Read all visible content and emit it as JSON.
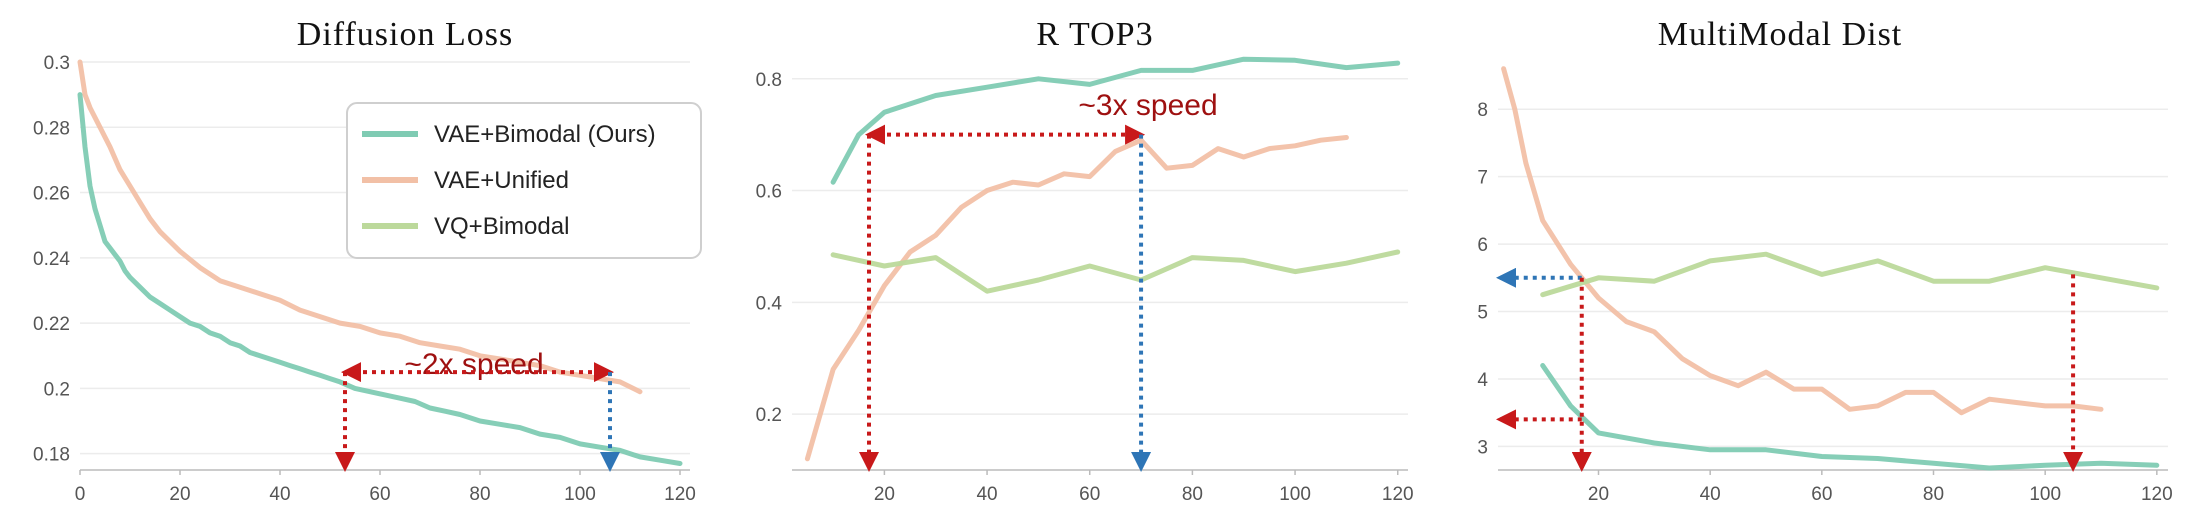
{
  "colors": {
    "vae_bimodal": "#7fcbb3",
    "vae_unified": "#f2c0a6",
    "vq_bimodal": "#bcd99b",
    "annotation_red": "#c8191a",
    "annotation_blue": "#2e75b6",
    "annotation_text": "#9e1010",
    "grid": "#ececec",
    "axis": "#bbbbbb"
  },
  "chart_data": [
    {
      "type": "line",
      "title": "Diffusion Loss",
      "xlabel": "",
      "ylabel": "",
      "xlim": [
        0,
        122
      ],
      "ylim": [
        0.175,
        0.3
      ],
      "xticks": [
        0,
        20,
        40,
        60,
        80,
        100,
        120
      ],
      "yticks": [
        0.18,
        0.2,
        0.22,
        0.24,
        0.26,
        0.28,
        0.3
      ],
      "ytick_labels": [
        "0.18",
        "0.2",
        "0.22",
        "0.24",
        "0.26",
        "0.28",
        "0.3"
      ],
      "legend": {
        "placement": "top-right",
        "entries": [
          "VAE+Bimodal (Ours)",
          "VAE+Unified",
          "VQ+Bimodal"
        ]
      },
      "series": [
        {
          "name": "VAE+Bimodal (Ours)",
          "color": "#7fcbb3",
          "points": [
            [
              0,
              0.29
            ],
            [
              1,
              0.274
            ],
            [
              2,
              0.262
            ],
            [
              3,
              0.255
            ],
            [
              4,
              0.25
            ],
            [
              5,
              0.245
            ],
            [
              6,
              0.243
            ],
            [
              7,
              0.241
            ],
            [
              8,
              0.239
            ],
            [
              9,
              0.236
            ],
            [
              10,
              0.234
            ],
            [
              12,
              0.231
            ],
            [
              14,
              0.228
            ],
            [
              16,
              0.226
            ],
            [
              18,
              0.224
            ],
            [
              20,
              0.222
            ],
            [
              22,
              0.22
            ],
            [
              24,
              0.219
            ],
            [
              26,
              0.217
            ],
            [
              28,
              0.216
            ],
            [
              30,
              0.214
            ],
            [
              32,
              0.213
            ],
            [
              34,
              0.211
            ],
            [
              36,
              0.21
            ],
            [
              38,
              0.209
            ],
            [
              40,
              0.208
            ],
            [
              42,
              0.207
            ],
            [
              44,
              0.206
            ],
            [
              46,
              0.205
            ],
            [
              48,
              0.204
            ],
            [
              50,
              0.203
            ],
            [
              52,
              0.202
            ],
            [
              55,
              0.2
            ],
            [
              58,
              0.199
            ],
            [
              61,
              0.198
            ],
            [
              64,
              0.197
            ],
            [
              67,
              0.196
            ],
            [
              70,
              0.194
            ],
            [
              73,
              0.193
            ],
            [
              76,
              0.192
            ],
            [
              80,
              0.19
            ],
            [
              84,
              0.189
            ],
            [
              88,
              0.188
            ],
            [
              92,
              0.186
            ],
            [
              96,
              0.185
            ],
            [
              100,
              0.183
            ],
            [
              104,
              0.182
            ],
            [
              108,
              0.181
            ],
            [
              112,
              0.179
            ],
            [
              116,
              0.178
            ],
            [
              120,
              0.177
            ]
          ]
        },
        {
          "name": "VAE+Unified",
          "color": "#f2c0a6",
          "points": [
            [
              0,
              0.3
            ],
            [
              1,
              0.29
            ],
            [
              2,
              0.286
            ],
            [
              3,
              0.283
            ],
            [
              4,
              0.28
            ],
            [
              5,
              0.277
            ],
            [
              6,
              0.274
            ],
            [
              8,
              0.267
            ],
            [
              10,
              0.262
            ],
            [
              12,
              0.257
            ],
            [
              14,
              0.252
            ],
            [
              16,
              0.248
            ],
            [
              18,
              0.245
            ],
            [
              20,
              0.242
            ],
            [
              24,
              0.237
            ],
            [
              28,
              0.233
            ],
            [
              32,
              0.231
            ],
            [
              36,
              0.229
            ],
            [
              40,
              0.227
            ],
            [
              44,
              0.224
            ],
            [
              48,
              0.222
            ],
            [
              52,
              0.22
            ],
            [
              56,
              0.219
            ],
            [
              60,
              0.217
            ],
            [
              64,
              0.216
            ],
            [
              68,
              0.214
            ],
            [
              72,
              0.213
            ],
            [
              76,
              0.212
            ],
            [
              80,
              0.21
            ],
            [
              84,
              0.209
            ],
            [
              88,
              0.208
            ],
            [
              92,
              0.207
            ],
            [
              96,
              0.205
            ],
            [
              100,
              0.204
            ],
            [
              104,
              0.203
            ],
            [
              108,
              0.202
            ],
            [
              112,
              0.199
            ]
          ]
        },
        {
          "name": "VQ+Bimodal",
          "color": "#bcd99b",
          "points": []
        }
      ],
      "annotations": [
        {
          "text": "~2x speed",
          "type": "double-arrow",
          "from_x": 53,
          "to_x": 106,
          "y": 0.205
        },
        {
          "type": "drop-arrow",
          "x": 53,
          "color": "red"
        },
        {
          "type": "drop-arrow",
          "x": 106,
          "color": "blue"
        }
      ]
    },
    {
      "type": "line",
      "title": "R TOP3",
      "xlabel": "",
      "ylabel": "",
      "xlim": [
        2,
        122
      ],
      "ylim": [
        0.1,
        0.83
      ],
      "xticks": [
        20,
        40,
        60,
        80,
        100,
        120
      ],
      "yticks": [
        0.2,
        0.4,
        0.6,
        0.8
      ],
      "ytick_labels": [
        "0.2",
        "0.4",
        "0.6",
        "0.8"
      ],
      "series": [
        {
          "name": "VAE+Bimodal (Ours)",
          "color": "#7fcbb3",
          "points": [
            [
              10,
              0.615
            ],
            [
              15,
              0.7
            ],
            [
              20,
              0.74
            ],
            [
              30,
              0.77
            ],
            [
              40,
              0.785
            ],
            [
              50,
              0.8
            ],
            [
              60,
              0.79
            ],
            [
              70,
              0.815
            ],
            [
              80,
              0.815
            ],
            [
              90,
              0.835
            ],
            [
              100,
              0.833
            ],
            [
              110,
              0.82
            ],
            [
              120,
              0.828
            ]
          ]
        },
        {
          "name": "VAE+Unified",
          "color": "#f2c0a6",
          "points": [
            [
              5,
              0.12
            ],
            [
              10,
              0.28
            ],
            [
              15,
              0.35
            ],
            [
              20,
              0.43
            ],
            [
              25,
              0.49
            ],
            [
              30,
              0.52
            ],
            [
              35,
              0.57
            ],
            [
              40,
              0.6
            ],
            [
              45,
              0.615
            ],
            [
              50,
              0.61
            ],
            [
              55,
              0.63
            ],
            [
              60,
              0.625
            ],
            [
              65,
              0.67
            ],
            [
              70,
              0.69
            ],
            [
              75,
              0.64
            ],
            [
              80,
              0.645
            ],
            [
              85,
              0.675
            ],
            [
              90,
              0.66
            ],
            [
              95,
              0.675
            ],
            [
              100,
              0.68
            ],
            [
              105,
              0.69
            ],
            [
              110,
              0.695
            ]
          ]
        },
        {
          "name": "VQ+Bimodal",
          "color": "#bcd99b",
          "points": [
            [
              10,
              0.485
            ],
            [
              20,
              0.465
            ],
            [
              30,
              0.48
            ],
            [
              40,
              0.42
            ],
            [
              50,
              0.44
            ],
            [
              60,
              0.465
            ],
            [
              70,
              0.44
            ],
            [
              80,
              0.48
            ],
            [
              90,
              0.475
            ],
            [
              100,
              0.455
            ],
            [
              110,
              0.47
            ],
            [
              120,
              0.49
            ]
          ]
        }
      ],
      "annotations": [
        {
          "text": "~3x speed",
          "type": "double-arrow",
          "from_x": 17,
          "to_x": 70,
          "y": 0.7
        },
        {
          "type": "drop-arrow",
          "x": 17,
          "color": "red"
        },
        {
          "type": "drop-arrow",
          "x": 70,
          "color": "blue"
        }
      ]
    },
    {
      "type": "line",
      "title": "MultiModal Dist",
      "xlabel": "",
      "ylabel": "",
      "xlim": [
        2,
        122
      ],
      "ylim": [
        2.65,
        8.7
      ],
      "xticks": [
        20,
        40,
        60,
        80,
        100,
        120
      ],
      "yticks": [
        3,
        4,
        5,
        6,
        7,
        8
      ],
      "ytick_labels": [
        "3",
        "4",
        "5",
        "6",
        "7",
        "8"
      ],
      "series": [
        {
          "name": "VAE+Bimodal (Ours)",
          "color": "#7fcbb3",
          "points": [
            [
              10,
              4.2
            ],
            [
              15,
              3.6
            ],
            [
              20,
              3.2
            ],
            [
              30,
              3.05
            ],
            [
              40,
              2.95
            ],
            [
              50,
              2.95
            ],
            [
              60,
              2.85
            ],
            [
              70,
              2.82
            ],
            [
              80,
              2.75
            ],
            [
              90,
              2.68
            ],
            [
              100,
              2.72
            ],
            [
              110,
              2.75
            ],
            [
              120,
              2.72
            ]
          ]
        },
        {
          "name": "VAE+Unified",
          "color": "#f2c0a6",
          "points": [
            [
              3,
              8.6
            ],
            [
              5,
              8.0
            ],
            [
              7,
              7.2
            ],
            [
              10,
              6.35
            ],
            [
              15,
              5.7
            ],
            [
              20,
              5.2
            ],
            [
              25,
              4.85
            ],
            [
              30,
              4.7
            ],
            [
              35,
              4.3
            ],
            [
              40,
              4.05
            ],
            [
              45,
              3.9
            ],
            [
              50,
              4.1
            ],
            [
              55,
              3.85
            ],
            [
              60,
              3.85
            ],
            [
              65,
              3.55
            ],
            [
              70,
              3.6
            ],
            [
              75,
              3.8
            ],
            [
              80,
              3.8
            ],
            [
              85,
              3.5
            ],
            [
              90,
              3.7
            ],
            [
              95,
              3.65
            ],
            [
              100,
              3.6
            ],
            [
              105,
              3.6
            ],
            [
              110,
              3.55
            ]
          ]
        },
        {
          "name": "VQ+Bimodal",
          "color": "#bcd99b",
          "points": [
            [
              10,
              5.25
            ],
            [
              20,
              5.5
            ],
            [
              30,
              5.45
            ],
            [
              40,
              5.75
            ],
            [
              50,
              5.85
            ],
            [
              60,
              5.55
            ],
            [
              70,
              5.75
            ],
            [
              80,
              5.45
            ],
            [
              90,
              5.45
            ],
            [
              100,
              5.65
            ],
            [
              110,
              5.5
            ],
            [
              120,
              5.35
            ]
          ]
        }
      ],
      "annotations": [
        {
          "type": "horizontal-arrow",
          "x": 17,
          "y": 5.5,
          "color": "blue"
        },
        {
          "type": "horizontal-arrow",
          "x": 17,
          "y": 3.4,
          "color": "red"
        },
        {
          "type": "drop-arrow",
          "x": 17,
          "color": "red"
        },
        {
          "type": "drop-arrow",
          "x": 105,
          "color": "red"
        }
      ]
    }
  ]
}
